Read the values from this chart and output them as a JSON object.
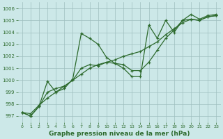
{
  "xlabel": "Graphe pression niveau de la mer (hPa)",
  "bg_color": "#cce8e8",
  "line_color": "#2d6a2d",
  "grid_color": "#9fbfbf",
  "ylim": [
    996.5,
    1006.5
  ],
  "xlim": [
    -0.5,
    23.5
  ],
  "yticks": [
    997,
    998,
    999,
    1000,
    1001,
    1002,
    1003,
    1004,
    1005,
    1006
  ],
  "xticks": [
    0,
    1,
    2,
    3,
    4,
    5,
    6,
    7,
    8,
    9,
    10,
    11,
    12,
    13,
    14,
    15,
    16,
    17,
    18,
    19,
    20,
    21,
    22,
    23
  ],
  "series1_x": [
    0,
    1,
    2,
    3,
    4,
    5,
    6,
    7,
    8,
    9,
    10,
    11,
    12,
    13,
    14,
    15,
    16,
    17,
    18,
    19,
    20,
    21,
    22,
    23
  ],
  "series1_y": [
    997.3,
    997.0,
    997.8,
    999.9,
    999.0,
    999.3,
    1000.1,
    1003.9,
    1003.5,
    1003.0,
    1001.9,
    1001.4,
    1001.0,
    1000.3,
    1000.3,
    1004.6,
    1003.5,
    1005.0,
    1004.0,
    1005.0,
    1005.5,
    1005.1,
    1005.4,
    1005.5
  ],
  "series2_x": [
    0,
    1,
    2,
    3,
    4,
    5,
    6,
    7,
    8,
    9,
    10,
    11,
    12,
    13,
    14,
    15,
    16,
    17,
    18,
    19,
    20,
    21,
    22,
    23
  ],
  "series2_y": [
    997.3,
    997.0,
    997.8,
    999.0,
    999.3,
    999.5,
    1000.0,
    1001.0,
    1001.3,
    1001.2,
    1001.5,
    1001.4,
    1001.3,
    1000.8,
    1000.8,
    1001.5,
    1002.5,
    1003.5,
    1004.2,
    1005.0,
    1005.1,
    1005.0,
    1005.3,
    1005.4
  ],
  "series3_x": [
    0,
    1,
    2,
    3,
    4,
    5,
    6,
    7,
    8,
    9,
    10,
    11,
    12,
    13,
    14,
    15,
    16,
    17,
    18,
    19,
    20,
    21,
    22,
    23
  ],
  "series3_y": [
    997.3,
    997.2,
    997.9,
    998.5,
    999.0,
    999.5,
    1000.0,
    1000.5,
    1001.0,
    1001.3,
    1001.5,
    1001.7,
    1002.0,
    1002.2,
    1002.4,
    1002.8,
    1003.2,
    1003.8,
    1004.3,
    1004.8,
    1005.1,
    1005.0,
    1005.3,
    1005.4
  ],
  "ytick_fontsize": 5,
  "xtick_fontsize": 4.5,
  "xlabel_fontsize": 6.5
}
